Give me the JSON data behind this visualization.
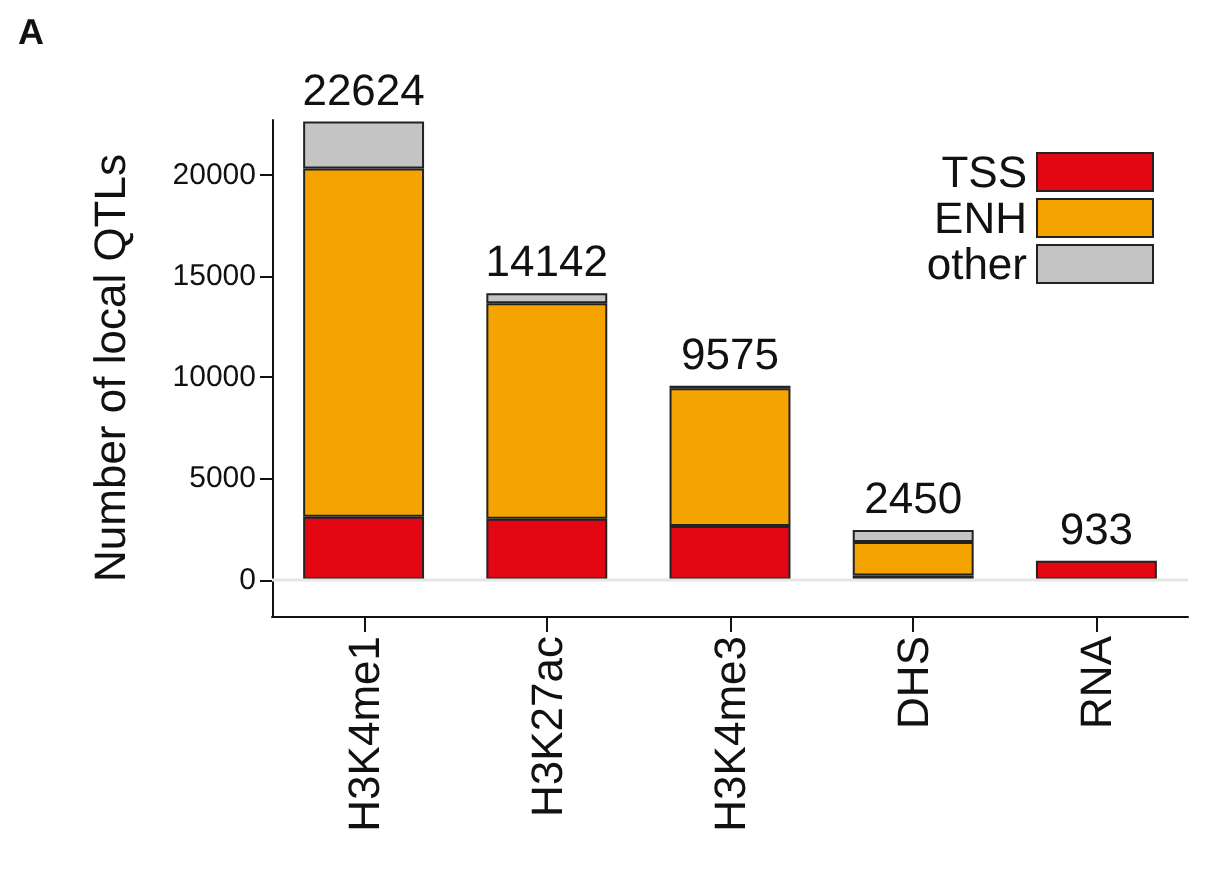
{
  "chart_data": {
    "type": "bar",
    "title": "A",
    "ylabel": "Number of local QTLs",
    "categories": [
      "H3K4me1",
      "H3K27ac",
      "H3K4me3",
      "DHS",
      "RNA"
    ],
    "series": [
      {
        "name": "TSS",
        "color": "#e30613",
        "values": [
          3100,
          3000,
          2650,
          200,
          933
        ]
      },
      {
        "name": "ENH",
        "color": "#f5a300",
        "values": [
          17200,
          10650,
          6800,
          1650,
          null
        ]
      },
      {
        "name": "other",
        "color": "#c4c4c4",
        "values": [
          2324,
          492,
          125,
          600,
          null
        ]
      }
    ],
    "stacked": true,
    "totals": [
      "22624",
      "14142",
      "9575",
      "2450",
      "933"
    ],
    "ylim": [
      -1800,
      22700
    ],
    "yticks": [
      0,
      5000,
      10000,
      15000,
      20000
    ],
    "ref_lines": [
      {
        "axis": "y",
        "value": 0,
        "color": "#e6e6e6"
      }
    ],
    "grid": false,
    "legend": "top right"
  }
}
